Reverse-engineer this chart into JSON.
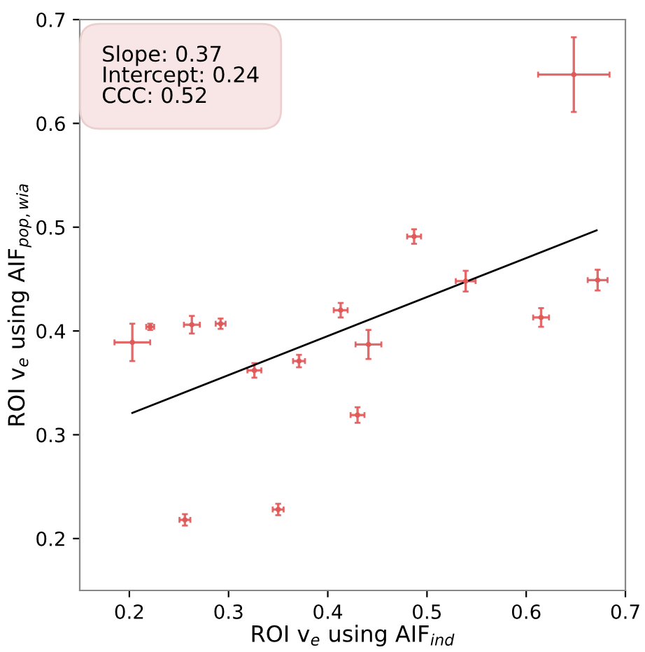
{
  "chart_data": {
    "type": "scatter",
    "xlabel": "ROI v$_{e}$ using AIF$_{ind}$",
    "ylabel": "ROI v$_{e}$ using AIF$_{pop,wia}$",
    "annotations": [
      "Slope: 0.37\nIntercept: 0.24\nCCC: 0.52"
    ],
    "xlim": [
      0.15,
      0.7
    ],
    "ylim": [
      0.15,
      0.7
    ],
    "xticks": [
      0.2,
      0.3,
      0.4,
      0.5,
      0.6,
      0.7
    ],
    "yticks": [
      0.2,
      0.3,
      0.4,
      0.5,
      0.6,
      0.7
    ],
    "grid": false,
    "legend": false,
    "series": [
      {
        "color": "#e05a5a",
        "x": [
          0.203,
          0.221,
          0.263,
          0.292,
          0.326,
          0.371,
          0.413,
          0.43,
          0.256,
          0.35,
          0.487,
          0.539,
          0.441,
          0.615,
          0.672,
          0.648
        ],
        "values": [
          0.389,
          0.404,
          0.406,
          0.407,
          0.362,
          0.371,
          0.42,
          0.319,
          0.218,
          0.228,
          0.491,
          0.448,
          0.387,
          0.413,
          0.449,
          0.647
        ],
        "xerrors": [
          0.018,
          0.004,
          0.008,
          0.005,
          0.007,
          0.006,
          0.007,
          0.007,
          0.0055,
          0.0055,
          0.007,
          0.01,
          0.013,
          0.008,
          0.01,
          0.036
        ],
        "errors": [
          0.018,
          0.003,
          0.0085,
          0.005,
          0.007,
          0.006,
          0.007,
          0.0075,
          0.0055,
          0.0055,
          0.007,
          0.01,
          0.014,
          0.009,
          0.01,
          0.036
        ]
      },
      {
        "type": "line",
        "color": "#000000",
        "x": [
          0.203,
          0.671
        ],
        "values": [
          0.321,
          0.497
        ]
      }
    ]
  }
}
